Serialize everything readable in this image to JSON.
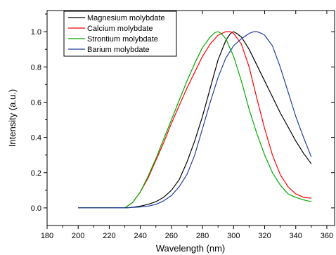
{
  "chart_data": {
    "type": "line",
    "xlabel": "Wavelength (nm)",
    "ylabel": "Intensity (a.u.)",
    "xlim": [
      180,
      365
    ],
    "ylim": [
      -0.1,
      1.12
    ],
    "xticks": [
      180,
      200,
      220,
      240,
      260,
      280,
      300,
      320,
      340,
      360
    ],
    "yticks": [
      0.0,
      0.2,
      0.4,
      0.6,
      0.8,
      1.0
    ],
    "ytick_labels": [
      "0.0",
      "0.2",
      "0.4",
      "0.6",
      "0.8",
      "1.0"
    ],
    "legend_position": "top-left",
    "grid": false,
    "series": [
      {
        "name": "Magnesium molybdate",
        "color": "#000000",
        "x": [
          200,
          210,
          220,
          230,
          235,
          240,
          245,
          250,
          255,
          260,
          265,
          270,
          275,
          280,
          285,
          290,
          295,
          298,
          300,
          302,
          305,
          310,
          315,
          320,
          325,
          330,
          335,
          340,
          345,
          350
        ],
        "y": [
          0.0,
          0.0,
          0.0,
          0.0,
          0.003,
          0.01,
          0.02,
          0.035,
          0.06,
          0.1,
          0.16,
          0.26,
          0.38,
          0.52,
          0.68,
          0.84,
          0.95,
          0.99,
          1.0,
          0.99,
          0.97,
          0.9,
          0.81,
          0.72,
          0.63,
          0.54,
          0.46,
          0.38,
          0.31,
          0.25
        ]
      },
      {
        "name": "Calcium molybdate",
        "color": "#ff0000",
        "x": [
          200,
          210,
          220,
          230,
          235,
          240,
          245,
          250,
          255,
          260,
          265,
          270,
          275,
          280,
          285,
          290,
          295,
          298,
          300,
          305,
          310,
          315,
          320,
          325,
          330,
          335,
          340,
          345,
          350
        ],
        "y": [
          0.0,
          0.0,
          0.0,
          0.0,
          0.03,
          0.09,
          0.17,
          0.27,
          0.37,
          0.48,
          0.58,
          0.68,
          0.77,
          0.86,
          0.93,
          0.98,
          1.0,
          1.0,
          0.99,
          0.93,
          0.8,
          0.62,
          0.45,
          0.3,
          0.19,
          0.12,
          0.08,
          0.06,
          0.055
        ]
      },
      {
        "name": "Strontium molybdate",
        "color": "#00aa00",
        "x": [
          200,
          210,
          220,
          230,
          235,
          240,
          245,
          250,
          255,
          260,
          265,
          270,
          275,
          280,
          285,
          288,
          290,
          292,
          295,
          300,
          305,
          310,
          315,
          320,
          325,
          330,
          335,
          340,
          345,
          350
        ],
        "y": [
          0.0,
          0.0,
          0.0,
          0.0,
          0.03,
          0.09,
          0.18,
          0.28,
          0.39,
          0.5,
          0.61,
          0.72,
          0.82,
          0.91,
          0.97,
          0.995,
          1.0,
          0.99,
          0.96,
          0.86,
          0.72,
          0.56,
          0.42,
          0.3,
          0.2,
          0.13,
          0.08,
          0.06,
          0.045,
          0.035
        ]
      },
      {
        "name": "Barium molybdate",
        "color": "#1f3fa0",
        "x": [
          200,
          210,
          220,
          230,
          240,
          245,
          250,
          255,
          260,
          265,
          270,
          275,
          280,
          285,
          290,
          295,
          300,
          305,
          310,
          313,
          315,
          318,
          320,
          325,
          330,
          335,
          340,
          345,
          350
        ],
        "y": [
          0.0,
          0.0,
          0.0,
          0.0,
          0.005,
          0.01,
          0.02,
          0.04,
          0.07,
          0.12,
          0.19,
          0.3,
          0.45,
          0.6,
          0.74,
          0.85,
          0.92,
          0.96,
          0.99,
          1.0,
          1.0,
          0.99,
          0.98,
          0.92,
          0.8,
          0.66,
          0.52,
          0.4,
          0.29
        ]
      }
    ]
  }
}
